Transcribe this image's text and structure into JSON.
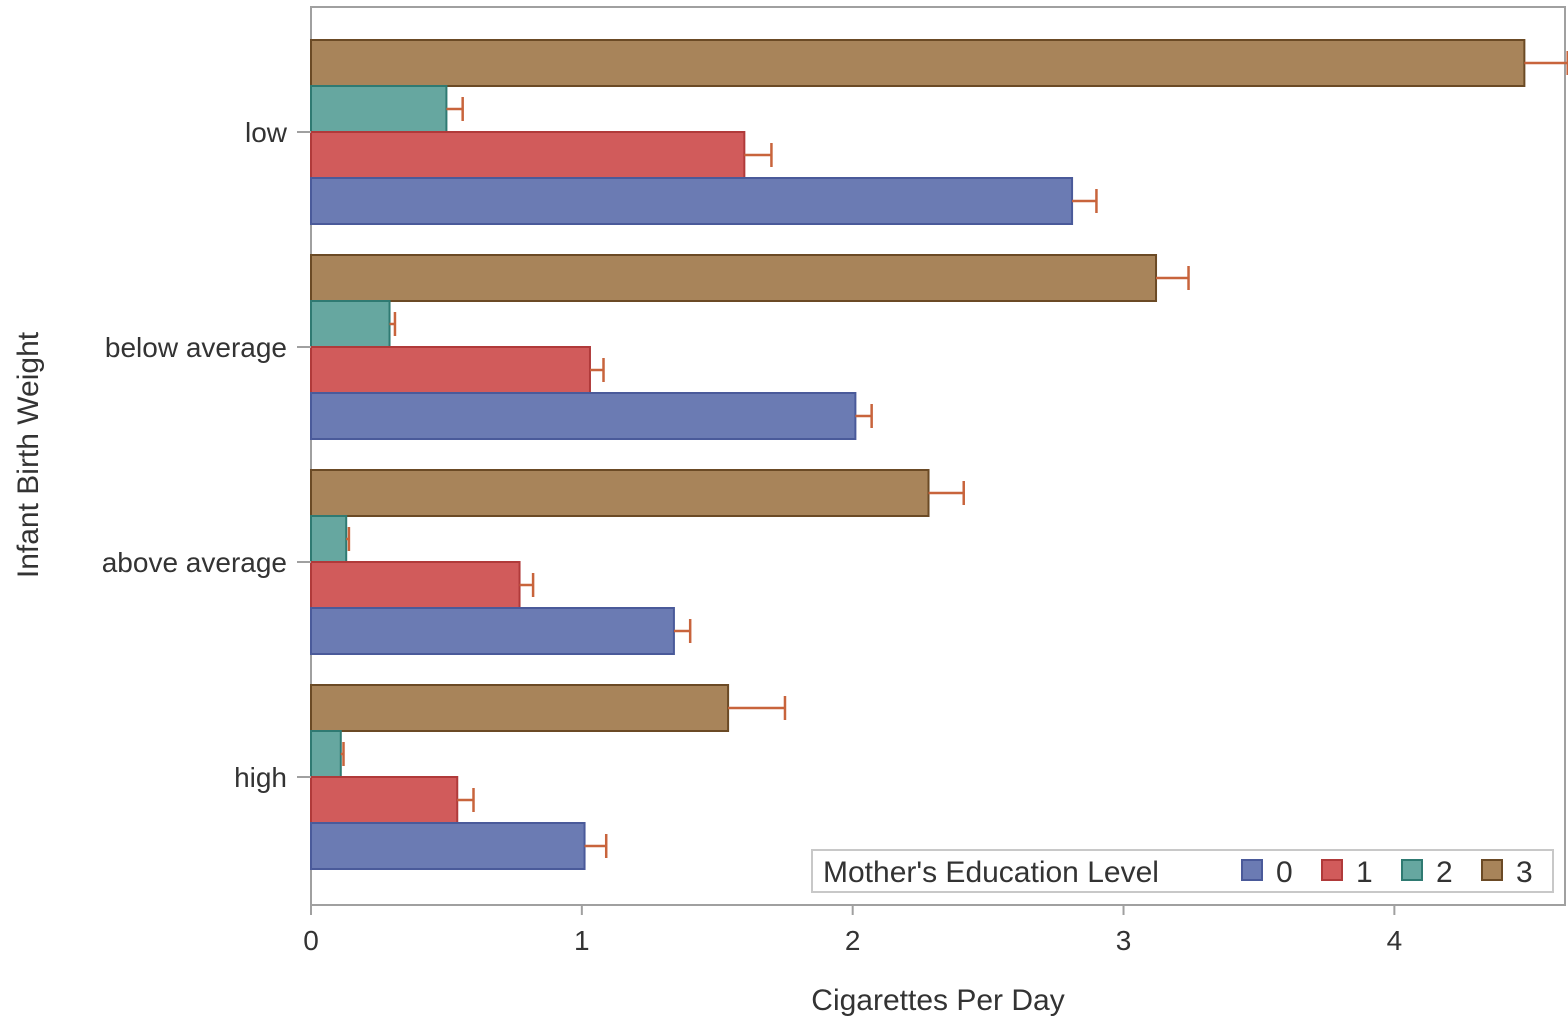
{
  "chart_data": {
    "type": "bar",
    "orientation": "horizontal",
    "xlabel": "Cigarettes Per Day",
    "ylabel": "Infant Birth Weight",
    "categories": [
      "low",
      "below average",
      "above average",
      "high"
    ],
    "xlim": [
      0,
      4.63
    ],
    "xticks": [
      0,
      1,
      2,
      3,
      4
    ],
    "grid": false,
    "series": [
      {
        "name": "0",
        "color": "#6b7bb3",
        "border": "#4a5a9a",
        "values": [
          2.81,
          2.01,
          1.34,
          1.01
        ],
        "error": [
          0.09,
          0.06,
          0.06,
          0.08
        ]
      },
      {
        "name": "1",
        "color": "#d15b5b",
        "border": "#b03a3a",
        "values": [
          1.6,
          1.03,
          0.77,
          0.54
        ],
        "error": [
          0.1,
          0.05,
          0.05,
          0.06
        ]
      },
      {
        "name": "2",
        "color": "#66a7a0",
        "border": "#2f7a72",
        "values": [
          0.5,
          0.29,
          0.13,
          0.11
        ],
        "error": [
          0.06,
          0.02,
          0.01,
          0.01
        ]
      },
      {
        "name": "3",
        "color": "#a8845a",
        "border": "#6b4a25",
        "values": [
          4.48,
          3.12,
          2.28,
          1.54
        ],
        "error": [
          0.16,
          0.12,
          0.13,
          0.21
        ]
      }
    ],
    "error_bar_color": "#c8643c",
    "legend": {
      "title": "Mother's Education Level",
      "placement": "bottom-right, inside plot"
    }
  }
}
